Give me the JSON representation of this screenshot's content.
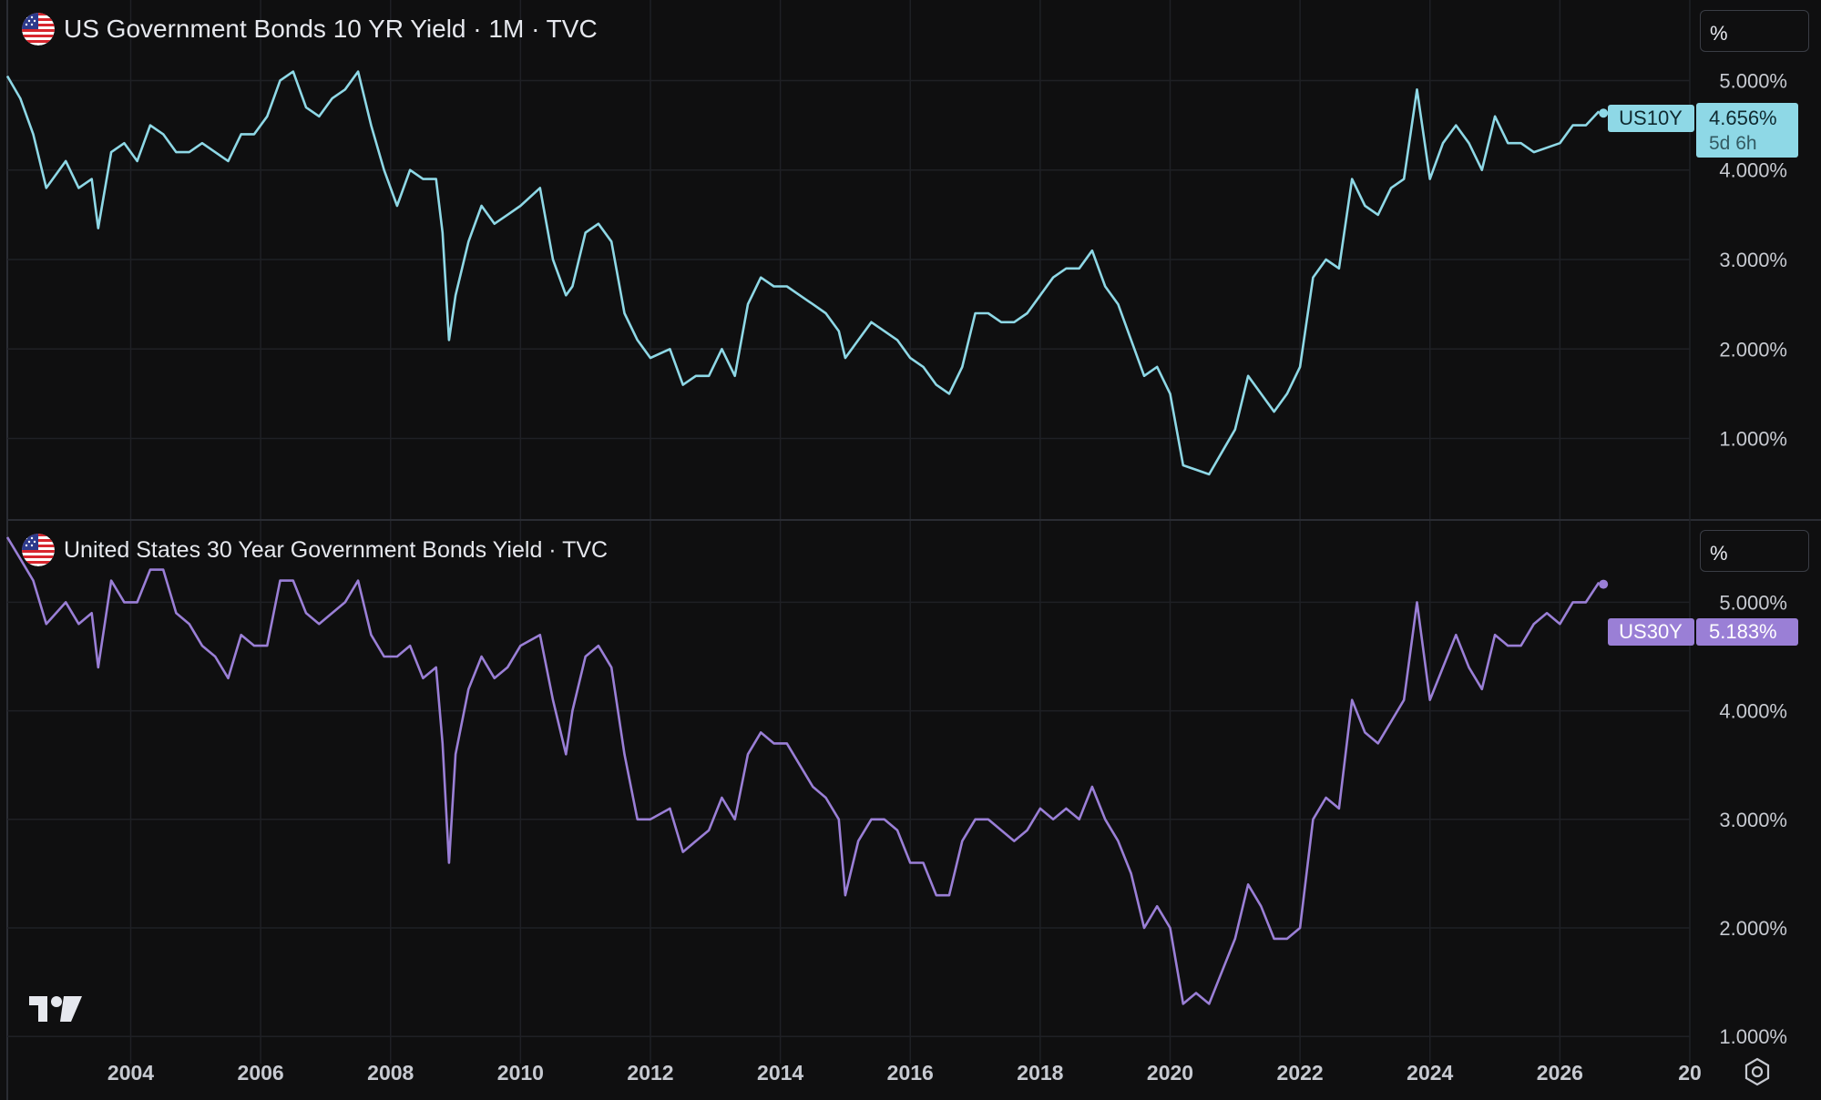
{
  "colors": {
    "background": "#0f0f10",
    "grid": "#1f2025",
    "axis_text": "#c7cad1",
    "us10y": "#8ed8e6",
    "us30y": "#9a7fd6"
  },
  "icons": [
    "us-flag-icon",
    "tradingview-logo-icon",
    "settings-icon"
  ],
  "x_axis_labels": [
    "2004",
    "2006",
    "2008",
    "2010",
    "2012",
    "2014",
    "2016",
    "2018",
    "2020",
    "2022",
    "2024",
    "2026",
    "20"
  ],
  "top_pane": {
    "title": "US Government Bonds 10 YR Yield · 1M · TVC",
    "unit_button": "%",
    "y_ticks": [
      "5.000%",
      "4.000%",
      "3.000%",
      "2.000%",
      "1.000%"
    ],
    "symbol_tag": "US10Y",
    "last_value": "4.656%",
    "countdown": "5d 6h"
  },
  "bottom_pane": {
    "title": "United States 30 Year Government Bonds Yield · TVC",
    "unit_button": "%",
    "y_ticks": [
      "5.000%",
      "4.000%",
      "3.000%",
      "2.000%",
      "1.000%"
    ],
    "symbol_tag": "US30Y",
    "last_value": "5.183%"
  },
  "chart_data": [
    {
      "type": "line",
      "title": "US Government Bonds 10 YR Yield · 1M · TVC",
      "ylim": [
        0.1,
        5.9
      ],
      "xlim": [
        2002.1,
        2028.0
      ],
      "series": [
        {
          "name": "US10Y",
          "x": [
            2002.1,
            2002.3,
            2002.5,
            2002.7,
            2003.0,
            2003.2,
            2003.4,
            2003.5,
            2003.7,
            2003.9,
            2004.1,
            2004.3,
            2004.5,
            2004.7,
            2004.9,
            2005.1,
            2005.3,
            2005.5,
            2005.7,
            2005.9,
            2006.1,
            2006.3,
            2006.5,
            2006.7,
            2006.9,
            2007.1,
            2007.3,
            2007.5,
            2007.7,
            2007.9,
            2008.1,
            2008.3,
            2008.5,
            2008.7,
            2008.8,
            2008.9,
            2009.0,
            2009.2,
            2009.4,
            2009.6,
            2009.8,
            2010.0,
            2010.3,
            2010.5,
            2010.7,
            2010.8,
            2011.0,
            2011.2,
            2011.4,
            2011.6,
            2011.8,
            2012.0,
            2012.3,
            2012.5,
            2012.7,
            2012.9,
            2013.1,
            2013.3,
            2013.5,
            2013.7,
            2013.9,
            2014.1,
            2014.3,
            2014.5,
            2014.7,
            2014.9,
            2015.0,
            2015.2,
            2015.4,
            2015.6,
            2015.8,
            2016.0,
            2016.2,
            2016.4,
            2016.6,
            2016.8,
            2017.0,
            2017.2,
            2017.4,
            2017.6,
            2017.8,
            2018.0,
            2018.2,
            2018.4,
            2018.6,
            2018.8,
            2019.0,
            2019.2,
            2019.4,
            2019.6,
            2019.8,
            2020.0,
            2020.2,
            2020.4,
            2020.6,
            2020.8,
            2021.0,
            2021.2,
            2021.4,
            2021.6,
            2021.8,
            2022.0,
            2022.2,
            2022.4,
            2022.6,
            2022.8,
            2023.0,
            2023.2,
            2023.4,
            2023.6,
            2023.8,
            2024.0,
            2024.2,
            2024.4,
            2024.6,
            2024.8,
            2025.0,
            2025.2,
            2025.4,
            2025.6,
            2025.8,
            2026.0,
            2026.2,
            2026.4,
            2026.6
          ],
          "y": [
            5.05,
            4.8,
            4.4,
            3.8,
            4.1,
            3.8,
            3.9,
            3.35,
            4.2,
            4.3,
            4.1,
            4.5,
            4.4,
            4.2,
            4.2,
            4.3,
            4.2,
            4.1,
            4.4,
            4.4,
            4.6,
            5.0,
            5.1,
            4.7,
            4.6,
            4.8,
            4.9,
            5.1,
            4.5,
            4.0,
            3.6,
            4.0,
            3.9,
            3.9,
            3.3,
            2.1,
            2.6,
            3.2,
            3.6,
            3.4,
            3.5,
            3.6,
            3.8,
            3.0,
            2.6,
            2.7,
            3.3,
            3.4,
            3.2,
            2.4,
            2.1,
            1.9,
            2.0,
            1.6,
            1.7,
            1.7,
            2.0,
            1.7,
            2.5,
            2.8,
            2.7,
            2.7,
            2.6,
            2.5,
            2.4,
            2.2,
            1.9,
            2.1,
            2.3,
            2.2,
            2.1,
            1.9,
            1.8,
            1.6,
            1.5,
            1.8,
            2.4,
            2.4,
            2.3,
            2.3,
            2.4,
            2.6,
            2.8,
            2.9,
            2.9,
            3.1,
            2.7,
            2.5,
            2.1,
            1.7,
            1.8,
            1.5,
            0.7,
            0.65,
            0.6,
            0.85,
            1.1,
            1.7,
            1.5,
            1.3,
            1.5,
            1.8,
            2.8,
            3.0,
            2.9,
            3.9,
            3.6,
            3.5,
            3.8,
            3.9,
            4.9,
            3.9,
            4.3,
            4.5,
            4.3,
            4.0,
            4.6,
            4.3,
            4.3,
            4.2,
            4.25,
            4.3,
            4.5,
            4.5,
            4.656
          ]
        }
      ]
    },
    {
      "type": "line",
      "title": "United States 30 Year Government Bonds Yield · TVC",
      "ylim": [
        0.75,
        5.75
      ],
      "xlim": [
        2002.1,
        2028.0
      ],
      "series": [
        {
          "name": "US30Y",
          "x": [
            2002.1,
            2002.3,
            2002.5,
            2002.7,
            2003.0,
            2003.2,
            2003.4,
            2003.5,
            2003.7,
            2003.9,
            2004.1,
            2004.3,
            2004.5,
            2004.7,
            2004.9,
            2005.1,
            2005.3,
            2005.5,
            2005.7,
            2005.9,
            2006.1,
            2006.3,
            2006.5,
            2006.7,
            2006.9,
            2007.1,
            2007.3,
            2007.5,
            2007.7,
            2007.9,
            2008.1,
            2008.3,
            2008.5,
            2008.7,
            2008.8,
            2008.9,
            2009.0,
            2009.2,
            2009.4,
            2009.6,
            2009.8,
            2010.0,
            2010.3,
            2010.5,
            2010.7,
            2010.8,
            2011.0,
            2011.2,
            2011.4,
            2011.6,
            2011.8,
            2012.0,
            2012.3,
            2012.5,
            2012.7,
            2012.9,
            2013.1,
            2013.3,
            2013.5,
            2013.7,
            2013.9,
            2014.1,
            2014.3,
            2014.5,
            2014.7,
            2014.9,
            2015.0,
            2015.2,
            2015.4,
            2015.6,
            2015.8,
            2016.0,
            2016.2,
            2016.4,
            2016.6,
            2016.8,
            2017.0,
            2017.2,
            2017.4,
            2017.6,
            2017.8,
            2018.0,
            2018.2,
            2018.4,
            2018.6,
            2018.8,
            2019.0,
            2019.2,
            2019.4,
            2019.6,
            2019.8,
            2020.0,
            2020.2,
            2020.4,
            2020.6,
            2020.8,
            2021.0,
            2021.2,
            2021.4,
            2021.6,
            2021.8,
            2022.0,
            2022.2,
            2022.4,
            2022.6,
            2022.8,
            2023.0,
            2023.2,
            2023.4,
            2023.6,
            2023.8,
            2024.0,
            2024.2,
            2024.4,
            2024.6,
            2024.8,
            2025.0,
            2025.2,
            2025.4,
            2025.6,
            2025.8,
            2026.0,
            2026.2,
            2026.4,
            2026.6
          ],
          "y": [
            5.6,
            5.4,
            5.2,
            4.8,
            5.0,
            4.8,
            4.9,
            4.4,
            5.2,
            5.0,
            5.0,
            5.3,
            5.3,
            4.9,
            4.8,
            4.6,
            4.5,
            4.3,
            4.7,
            4.6,
            4.6,
            5.2,
            5.2,
            4.9,
            4.8,
            4.9,
            5.0,
            5.2,
            4.7,
            4.5,
            4.5,
            4.6,
            4.3,
            4.4,
            3.7,
            2.6,
            3.6,
            4.2,
            4.5,
            4.3,
            4.4,
            4.6,
            4.7,
            4.1,
            3.6,
            4.0,
            4.5,
            4.6,
            4.4,
            3.6,
            3.0,
            3.0,
            3.1,
            2.7,
            2.8,
            2.9,
            3.2,
            3.0,
            3.6,
            3.8,
            3.7,
            3.7,
            3.5,
            3.3,
            3.2,
            3.0,
            2.3,
            2.8,
            3.0,
            3.0,
            2.9,
            2.6,
            2.6,
            2.3,
            2.3,
            2.8,
            3.0,
            3.0,
            2.9,
            2.8,
            2.9,
            3.1,
            3.0,
            3.1,
            3.0,
            3.3,
            3.0,
            2.8,
            2.5,
            2.0,
            2.2,
            2.0,
            1.3,
            1.4,
            1.3,
            1.6,
            1.9,
            2.4,
            2.2,
            1.9,
            1.9,
            2.0,
            3.0,
            3.2,
            3.1,
            4.1,
            3.8,
            3.7,
            3.9,
            4.1,
            5.0,
            4.1,
            4.4,
            4.7,
            4.4,
            4.2,
            4.7,
            4.6,
            4.6,
            4.8,
            4.9,
            4.8,
            5.0,
            5.0,
            5.183
          ]
        }
      ]
    }
  ]
}
